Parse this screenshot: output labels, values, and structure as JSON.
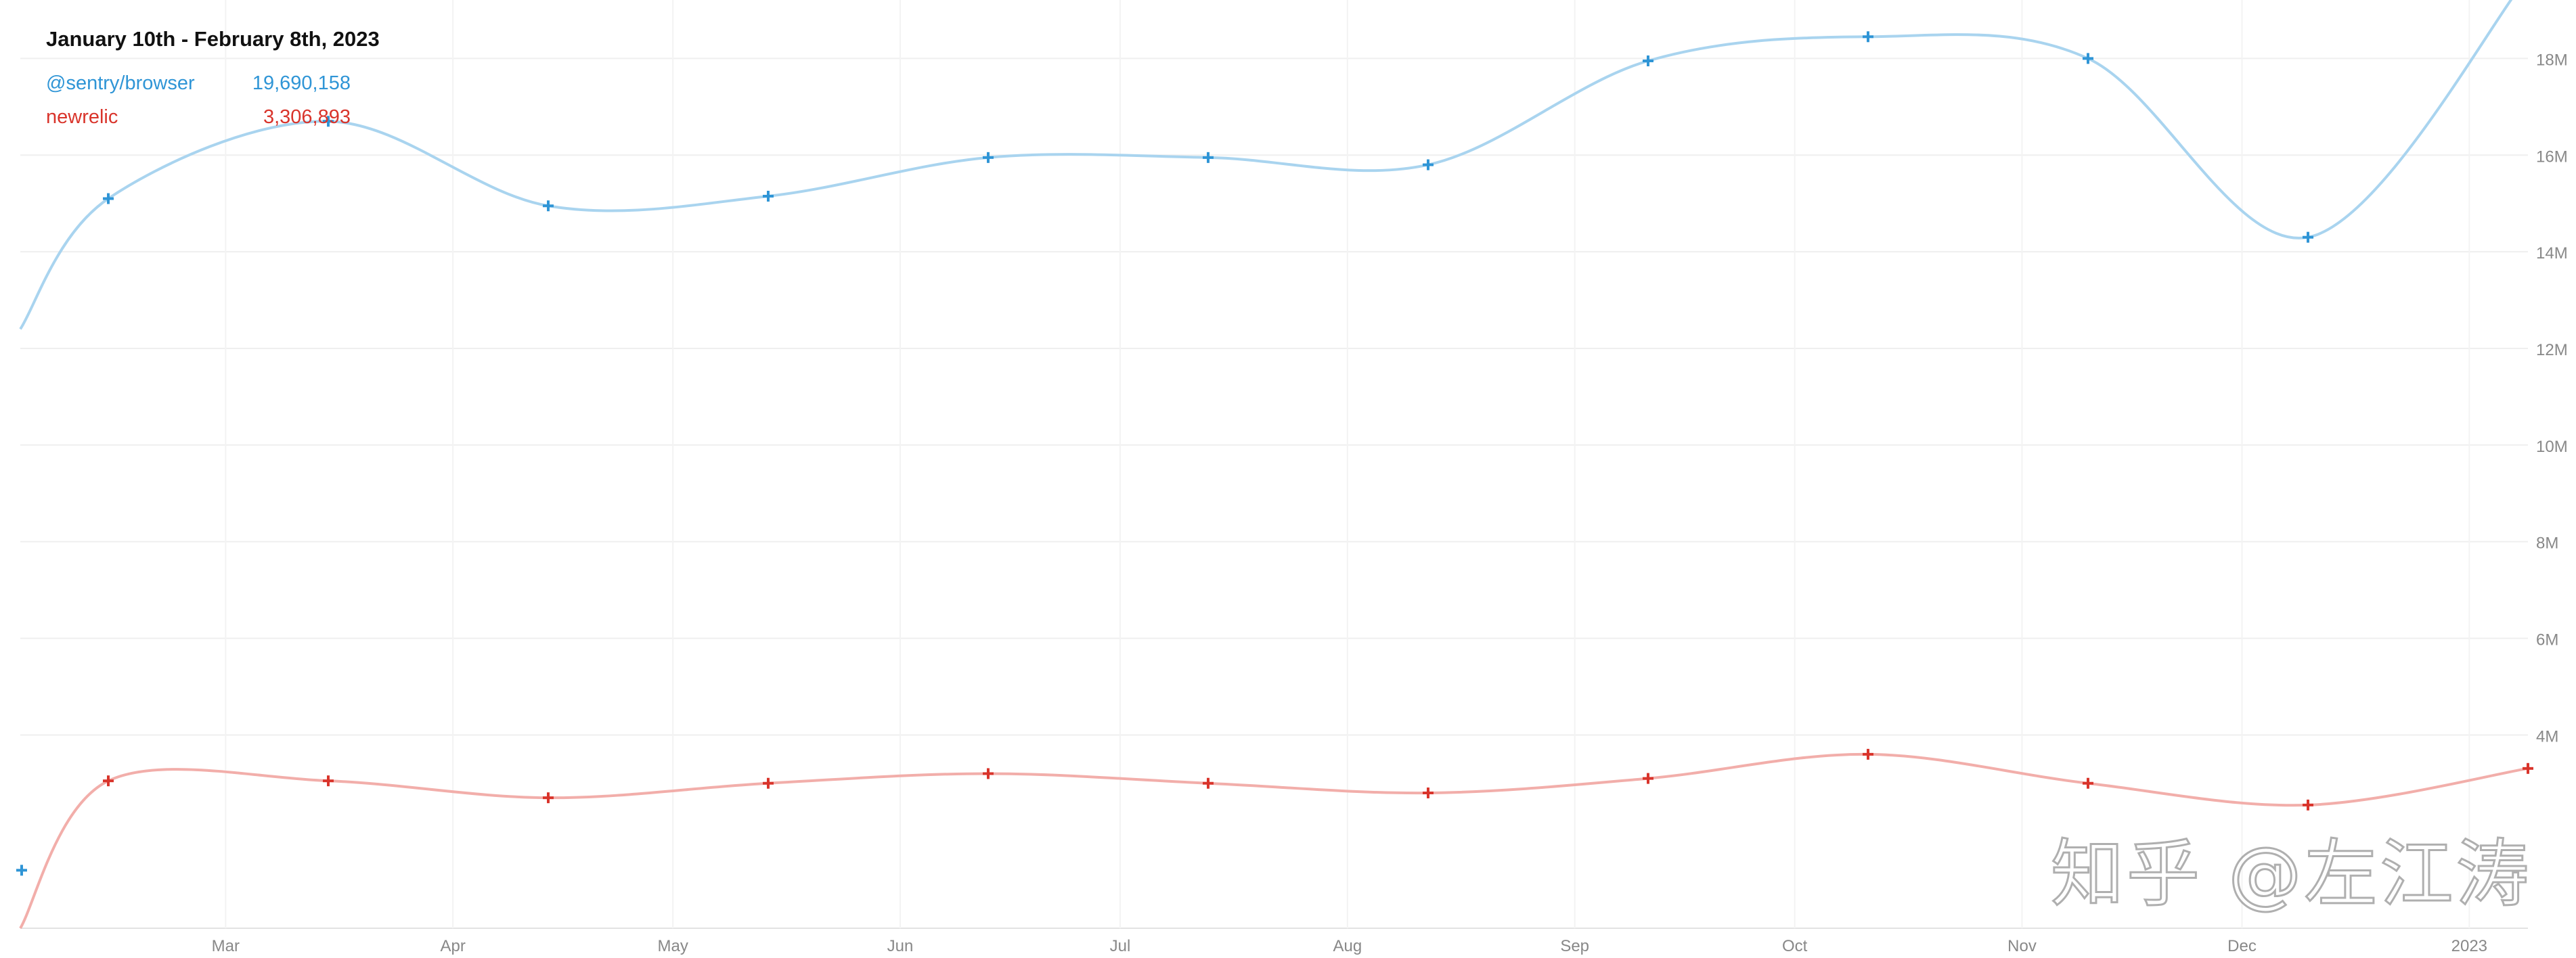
{
  "tooltip": {
    "title": "January 10th - February 8th, 2023",
    "rows": [
      {
        "name": "@sentry/browser",
        "value": "19,690,158",
        "color": "#2f95d6"
      },
      {
        "name": "newrelic",
        "value": "3,306,893",
        "color": "#d9342b"
      }
    ]
  },
  "watermark": "知乎 @左江涛",
  "chart_data": {
    "type": "line",
    "x_labels": [
      "Mar",
      "Apr",
      "May",
      "Jun",
      "Jul",
      "Aug",
      "Sep",
      "Oct",
      "Nov",
      "Dec",
      "2023"
    ],
    "ylim": [
      0,
      19000000
    ],
    "y_ticks": [
      {
        "value": 4000000,
        "label": "4M"
      },
      {
        "value": 6000000,
        "label": "6M"
      },
      {
        "value": 8000000,
        "label": "8M"
      },
      {
        "value": 10000000,
        "label": "10M"
      },
      {
        "value": 12000000,
        "label": "12M"
      },
      {
        "value": 14000000,
        "label": "14M"
      },
      {
        "value": 16000000,
        "label": "16M"
      },
      {
        "value": 18000000,
        "label": "18M"
      }
    ],
    "grid": true,
    "y_axis_side": "right",
    "series": [
      {
        "name": "@sentry/browser",
        "line_color": "#a9d4ef",
        "marker_color": "#2f95d6",
        "points": [
          {
            "x": "2022-02-01",
            "y": 12400000
          },
          {
            "x": "2022-02-13",
            "y": 15100000
          },
          {
            "x": "2022-03-15",
            "y": 16700000
          },
          {
            "x": "2022-04-14",
            "y": 14950000
          },
          {
            "x": "2022-05-14",
            "y": 15150000
          },
          {
            "x": "2022-06-13",
            "y": 15950000
          },
          {
            "x": "2022-07-13",
            "y": 15950000
          },
          {
            "x": "2022-08-12",
            "y": 15800000
          },
          {
            "x": "2022-09-11",
            "y": 17950000
          },
          {
            "x": "2022-10-11",
            "y": 18450000
          },
          {
            "x": "2022-11-10",
            "y": 18000000
          },
          {
            "x": "2022-12-10",
            "y": 14300000
          },
          {
            "x": "2023-01-09",
            "y": 19690158
          }
        ]
      },
      {
        "name": "newrelic",
        "line_color": "#f2aeaa",
        "marker_color": "#d9342b",
        "points": [
          {
            "x": "2022-02-01",
            "y": 0
          },
          {
            "x": "2022-02-13",
            "y": 3050000
          },
          {
            "x": "2022-03-15",
            "y": 3050000
          },
          {
            "x": "2022-04-14",
            "y": 2700000
          },
          {
            "x": "2022-05-14",
            "y": 3000000
          },
          {
            "x": "2022-06-13",
            "y": 3200000
          },
          {
            "x": "2022-07-13",
            "y": 3000000
          },
          {
            "x": "2022-08-12",
            "y": 2800000
          },
          {
            "x": "2022-09-11",
            "y": 3100000
          },
          {
            "x": "2022-10-11",
            "y": 3600000
          },
          {
            "x": "2022-11-10",
            "y": 3000000
          },
          {
            "x": "2022-12-10",
            "y": 2550000
          },
          {
            "x": "2023-01-09",
            "y": 3306893
          }
        ]
      }
    ]
  }
}
